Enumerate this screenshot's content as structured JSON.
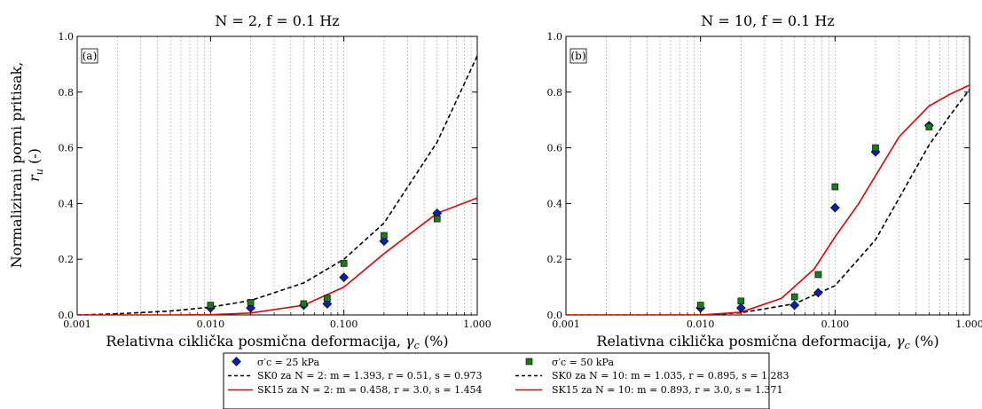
{
  "figure": {
    "ylabel_line1": "Normalizirani porni pritisak,",
    "ylabel_line2": "r",
    "ylabel_sub": "u",
    "ylabel_unit": " (-)",
    "legend": {
      "marker_25": "σ′c = 25 kPa",
      "marker_50": "σ′c = 50 kPa",
      "sk0_n2": "SK0 za N = 2: m = 1.393, r = 0.51, s = 0.973",
      "sk0_n10": "SK0 za N = 10: m = 1.035, r = 0.895, s = 1.283",
      "sk15_n2": "SK15 za N = 2: m = 0.458, r = 3.0, s = 1.454",
      "sk15_n10": "SK15 za N = 10: m = 0.893, r = 3.0, s = 1.371"
    },
    "colors": {
      "marker_25": "#0a1eb4",
      "marker_50": "#1a7a1a",
      "sk0": "#000000",
      "sk15": "#e00000"
    }
  },
  "chart_data": [
    {
      "type": "scatter",
      "panel_label": "(a)",
      "title": "N = 2, f = 0.1 Hz",
      "xlabel": "Relativna ciklička posmična deformacija, γc (%)",
      "xscale": "log",
      "xlim": [
        0.001,
        1.0
      ],
      "ylim": [
        0.0,
        1.0
      ],
      "xticks": [
        "0.001",
        "0.010",
        "0.100",
        "1.000"
      ],
      "yticks": [
        "0.0",
        "0.2",
        "0.4",
        "0.6",
        "0.8",
        "1.0"
      ],
      "grid": true,
      "series": [
        {
          "name": "σ′c = 25 kPa",
          "x": [
            0.01,
            0.02,
            0.05,
            0.075,
            0.1,
            0.2,
            0.5
          ],
          "y": [
            0.025,
            0.025,
            0.035,
            0.04,
            0.135,
            0.265,
            0.365
          ]
        },
        {
          "name": "σ′c = 50 kPa",
          "x": [
            0.01,
            0.02,
            0.05,
            0.075,
            0.1,
            0.2,
            0.5
          ],
          "y": [
            0.035,
            0.045,
            0.04,
            0.06,
            0.185,
            0.285,
            0.345
          ]
        },
        {
          "name": "SK0 za N = 2: m = 1.393, r = 0.51, s = 0.973",
          "x": [
            0.001,
            0.002,
            0.005,
            0.01,
            0.02,
            0.05,
            0.1,
            0.2,
            0.5,
            1.0
          ],
          "y": [
            0.0,
            0.004,
            0.014,
            0.028,
            0.052,
            0.115,
            0.2,
            0.33,
            0.62,
            0.93
          ]
        },
        {
          "name": "SK15 za N = 2: m = 0.458, r = 3.0, s = 1.454",
          "x": [
            0.001,
            0.005,
            0.01,
            0.02,
            0.05,
            0.1,
            0.2,
            0.5,
            1.0
          ],
          "y": [
            0.0,
            0.0,
            0.001,
            0.007,
            0.035,
            0.1,
            0.22,
            0.365,
            0.42
          ]
        }
      ]
    },
    {
      "type": "scatter",
      "panel_label": "(b)",
      "title": "N = 10, f = 0.1 Hz",
      "xlabel": "Relativna ciklička posmična deformacija, γc (%)",
      "xscale": "log",
      "xlim": [
        0.001,
        1.0
      ],
      "ylim": [
        0.0,
        1.0
      ],
      "xticks": [
        "0.001",
        "0.010",
        "0.100",
        "1.000"
      ],
      "yticks": [
        "0.0",
        "0.2",
        "0.4",
        "0.6",
        "0.8",
        "1.0"
      ],
      "grid": true,
      "series": [
        {
          "name": "σ′c = 25 kPa",
          "x": [
            0.01,
            0.02,
            0.05,
            0.075,
            0.1,
            0.2,
            0.5
          ],
          "y": [
            0.025,
            0.025,
            0.035,
            0.08,
            0.385,
            0.585,
            0.68
          ]
        },
        {
          "name": "σ′c = 50 kPa",
          "x": [
            0.01,
            0.02,
            0.05,
            0.075,
            0.1,
            0.2,
            0.5
          ],
          "y": [
            0.035,
            0.05,
            0.065,
            0.145,
            0.46,
            0.6,
            0.675
          ]
        },
        {
          "name": "SK0 za N = 10: m = 1.035, r = 0.895, s = 1.283",
          "x": [
            0.001,
            0.01,
            0.02,
            0.05,
            0.1,
            0.2,
            0.3,
            0.5,
            0.7,
            1.0
          ],
          "y": [
            0.0,
            0.0,
            0.008,
            0.04,
            0.105,
            0.27,
            0.42,
            0.61,
            0.71,
            0.81
          ]
        },
        {
          "name": "SK15 za N = 10: m = 0.893, r = 3.0, s = 1.371",
          "x": [
            0.001,
            0.01,
            0.02,
            0.04,
            0.07,
            0.1,
            0.15,
            0.2,
            0.3,
            0.5,
            0.7,
            1.0
          ],
          "y": [
            0.0,
            0.0,
            0.01,
            0.06,
            0.165,
            0.28,
            0.4,
            0.5,
            0.64,
            0.75,
            0.79,
            0.825
          ]
        }
      ]
    }
  ]
}
